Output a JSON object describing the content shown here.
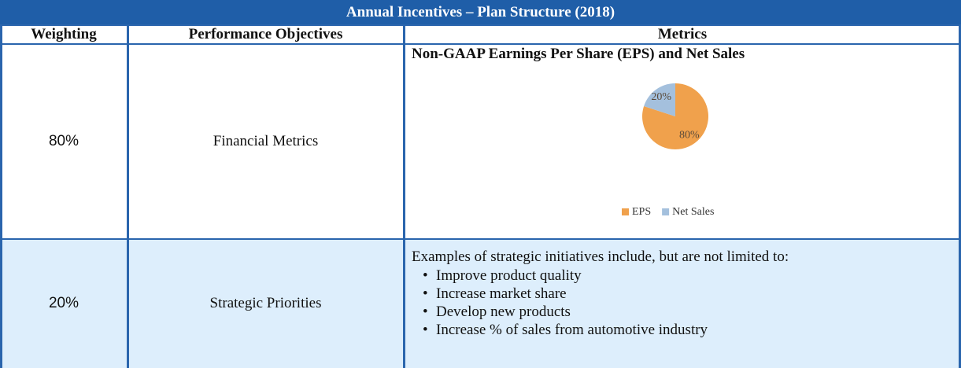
{
  "title": "Annual Incentives – Plan Structure (2018)",
  "table": {
    "headers": [
      "Weighting",
      "Performance Objectives",
      "Metrics"
    ],
    "rows": [
      [
        "80%",
        "Financial Metrics"
      ],
      [
        "20%",
        "Strategic Priorities"
      ]
    ]
  },
  "chart_data": {
    "type": "pie",
    "title": "Non-GAAP Earnings Per Share (EPS) and Net Sales",
    "categories": [
      "EPS",
      "Net Sales"
    ],
    "values": [
      80,
      20
    ],
    "value_labels": [
      "80%",
      "20%"
    ],
    "colors": [
      "#f0a14c",
      "#a4c0dd"
    ],
    "legend": "bottom"
  },
  "strategic": {
    "intro": "Examples of strategic initiatives include, but are not limited to:",
    "items": [
      "Improve product quality",
      "Increase market share",
      "Develop new products",
      "Increase % of sales from automotive industry"
    ]
  }
}
